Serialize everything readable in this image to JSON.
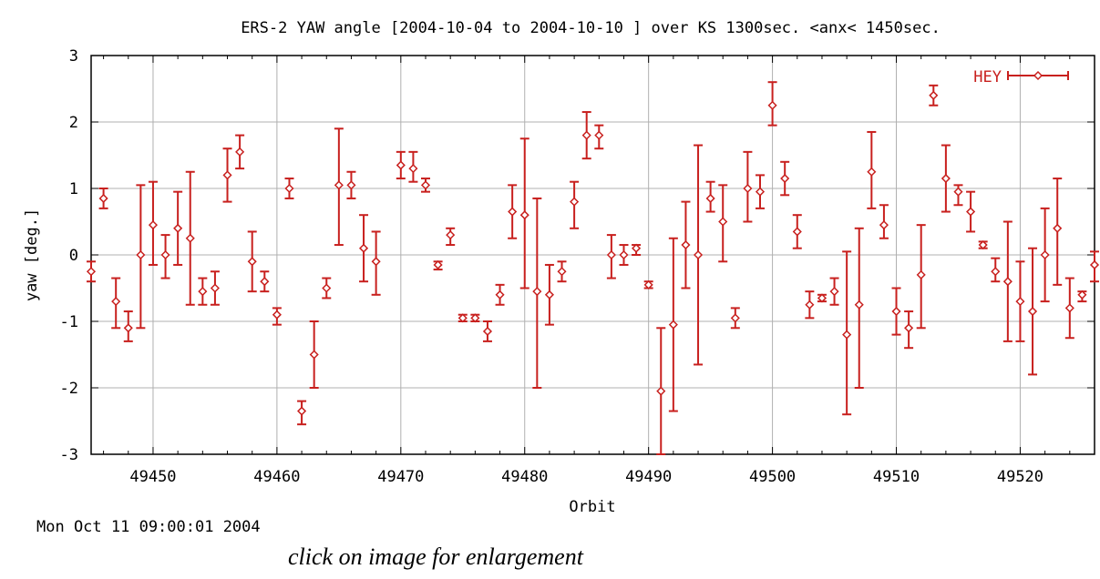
{
  "chart_data": {
    "type": "scatter",
    "title": "ERS-2 YAW angle [2004-10-04 to 2004-10-10 ] over KS 1300sec. <anx< 1450sec.",
    "xlabel": "Orbit",
    "ylabel": "yaw [deg.]",
    "xlim": [
      49445,
      49526
    ],
    "ylim": [
      -3,
      3
    ],
    "x_ticks": [
      49450,
      49460,
      49470,
      49480,
      49490,
      49500,
      49510,
      49520
    ],
    "y_ticks": [
      -3,
      -2,
      -1,
      0,
      1,
      2,
      3
    ],
    "grid": true,
    "legend_position": "top-right",
    "series": [
      {
        "name": "HEY",
        "color": "#c8201e",
        "points": [
          {
            "x": 49445,
            "y": -0.25,
            "lo": -0.4,
            "hi": -0.1
          },
          {
            "x": 49446,
            "y": 0.85,
            "lo": 0.7,
            "hi": 1.0
          },
          {
            "x": 49447,
            "y": -0.7,
            "lo": -1.1,
            "hi": -0.35
          },
          {
            "x": 49448,
            "y": -1.1,
            "lo": -1.3,
            "hi": -0.85
          },
          {
            "x": 49449,
            "y": 0.0,
            "lo": -1.1,
            "hi": 1.05
          },
          {
            "x": 49450,
            "y": 0.45,
            "lo": -0.15,
            "hi": 1.1
          },
          {
            "x": 49451,
            "y": 0.0,
            "lo": -0.35,
            "hi": 0.3
          },
          {
            "x": 49452,
            "y": 0.4,
            "lo": -0.15,
            "hi": 0.95
          },
          {
            "x": 49453,
            "y": 0.25,
            "lo": -0.75,
            "hi": 1.25
          },
          {
            "x": 49454,
            "y": -0.55,
            "lo": -0.75,
            "hi": -0.35
          },
          {
            "x": 49455,
            "y": -0.5,
            "lo": -0.75,
            "hi": -0.25
          },
          {
            "x": 49456,
            "y": 1.2,
            "lo": 0.8,
            "hi": 1.6
          },
          {
            "x": 49457,
            "y": 1.55,
            "lo": 1.3,
            "hi": 1.8
          },
          {
            "x": 49458,
            "y": -0.1,
            "lo": -0.55,
            "hi": 0.35
          },
          {
            "x": 49459,
            "y": -0.4,
            "lo": -0.55,
            "hi": -0.25
          },
          {
            "x": 49460,
            "y": -0.9,
            "lo": -1.05,
            "hi": -0.8
          },
          {
            "x": 49461,
            "y": 1.0,
            "lo": 0.85,
            "hi": 1.15
          },
          {
            "x": 49462,
            "y": -2.35,
            "lo": -2.55,
            "hi": -2.2
          },
          {
            "x": 49463,
            "y": -1.5,
            "lo": -2.0,
            "hi": -1.0
          },
          {
            "x": 49464,
            "y": -0.5,
            "lo": -0.65,
            "hi": -0.35
          },
          {
            "x": 49465,
            "y": 1.05,
            "lo": 0.15,
            "hi": 1.9
          },
          {
            "x": 49466,
            "y": 1.05,
            "lo": 0.85,
            "hi": 1.25
          },
          {
            "x": 49467,
            "y": 0.1,
            "lo": -0.4,
            "hi": 0.6
          },
          {
            "x": 49468,
            "y": -0.1,
            "lo": -0.6,
            "hi": 0.35
          },
          {
            "x": 49470,
            "y": 1.35,
            "lo": 1.15,
            "hi": 1.55
          },
          {
            "x": 49471,
            "y": 1.3,
            "lo": 1.1,
            "hi": 1.55
          },
          {
            "x": 49472,
            "y": 1.05,
            "lo": 0.95,
            "hi": 1.15
          },
          {
            "x": 49473,
            "y": -0.15,
            "lo": -0.22,
            "hi": -0.1
          },
          {
            "x": 49474,
            "y": 0.3,
            "lo": 0.15,
            "hi": 0.4
          },
          {
            "x": 49475,
            "y": -0.95,
            "lo": -1.0,
            "hi": -0.9
          },
          {
            "x": 49476,
            "y": -0.95,
            "lo": -1.0,
            "hi": -0.9
          },
          {
            "x": 49477,
            "y": -1.15,
            "lo": -1.3,
            "hi": -1.0
          },
          {
            "x": 49478,
            "y": -0.6,
            "lo": -0.75,
            "hi": -0.45
          },
          {
            "x": 49479,
            "y": 0.65,
            "lo": 0.25,
            "hi": 1.05
          },
          {
            "x": 49480,
            "y": 0.6,
            "lo": -0.5,
            "hi": 1.75
          },
          {
            "x": 49481,
            "y": -0.55,
            "lo": -2.0,
            "hi": 0.85
          },
          {
            "x": 49482,
            "y": -0.6,
            "lo": -1.05,
            "hi": -0.15
          },
          {
            "x": 49483,
            "y": -0.25,
            "lo": -0.4,
            "hi": -0.1
          },
          {
            "x": 49484,
            "y": 0.8,
            "lo": 0.4,
            "hi": 1.1
          },
          {
            "x": 49485,
            "y": 1.8,
            "lo": 1.45,
            "hi": 2.15
          },
          {
            "x": 49486,
            "y": 1.8,
            "lo": 1.6,
            "hi": 1.95
          },
          {
            "x": 49487,
            "y": 0.0,
            "lo": -0.35,
            "hi": 0.3
          },
          {
            "x": 49488,
            "y": 0.0,
            "lo": -0.15,
            "hi": 0.15
          },
          {
            "x": 49489,
            "y": 0.1,
            "lo": 0.0,
            "hi": 0.15
          },
          {
            "x": 49490,
            "y": -0.45,
            "lo": -0.5,
            "hi": -0.4
          },
          {
            "x": 49491,
            "y": -2.05,
            "lo": -3.0,
            "hi": -1.1
          },
          {
            "x": 49492,
            "y": -1.05,
            "lo": -2.35,
            "hi": 0.25
          },
          {
            "x": 49493,
            "y": 0.15,
            "lo": -0.5,
            "hi": 0.8
          },
          {
            "x": 49494,
            "y": 0.0,
            "lo": -1.65,
            "hi": 1.65
          },
          {
            "x": 49495,
            "y": 0.85,
            "lo": 0.65,
            "hi": 1.1
          },
          {
            "x": 49496,
            "y": 0.5,
            "lo": -0.1,
            "hi": 1.05
          },
          {
            "x": 49497,
            "y": -0.95,
            "lo": -1.1,
            "hi": -0.8
          },
          {
            "x": 49498,
            "y": 1.0,
            "lo": 0.5,
            "hi": 1.55
          },
          {
            "x": 49499,
            "y": 0.95,
            "lo": 0.7,
            "hi": 1.2
          },
          {
            "x": 49500,
            "y": 2.25,
            "lo": 1.95,
            "hi": 2.6
          },
          {
            "x": 49501,
            "y": 1.15,
            "lo": 0.9,
            "hi": 1.4
          },
          {
            "x": 49502,
            "y": 0.35,
            "lo": 0.1,
            "hi": 0.6
          },
          {
            "x": 49503,
            "y": -0.75,
            "lo": -0.95,
            "hi": -0.55
          },
          {
            "x": 49504,
            "y": -0.65,
            "lo": -0.7,
            "hi": -0.6
          },
          {
            "x": 49505,
            "y": -0.55,
            "lo": -0.75,
            "hi": -0.35
          },
          {
            "x": 49506,
            "y": -1.2,
            "lo": -2.4,
            "hi": 0.05
          },
          {
            "x": 49507,
            "y": -0.75,
            "lo": -2.0,
            "hi": 0.4
          },
          {
            "x": 49508,
            "y": 1.25,
            "lo": 0.7,
            "hi": 1.85
          },
          {
            "x": 49509,
            "y": 0.45,
            "lo": 0.25,
            "hi": 0.75
          },
          {
            "x": 49510,
            "y": -0.85,
            "lo": -1.2,
            "hi": -0.5
          },
          {
            "x": 49511,
            "y": -1.1,
            "lo": -1.4,
            "hi": -0.85
          },
          {
            "x": 49512,
            "y": -0.3,
            "lo": -1.1,
            "hi": 0.45
          },
          {
            "x": 49513,
            "y": 2.4,
            "lo": 2.25,
            "hi": 2.55
          },
          {
            "x": 49514,
            "y": 1.15,
            "lo": 0.65,
            "hi": 1.65
          },
          {
            "x": 49515,
            "y": 0.95,
            "lo": 0.75,
            "hi": 1.05
          },
          {
            "x": 49516,
            "y": 0.65,
            "lo": 0.35,
            "hi": 0.95
          },
          {
            "x": 49517,
            "y": 0.15,
            "lo": 0.1,
            "hi": 0.2
          },
          {
            "x": 49518,
            "y": -0.25,
            "lo": -0.4,
            "hi": -0.05
          },
          {
            "x": 49519,
            "y": -0.4,
            "lo": -1.3,
            "hi": 0.5
          },
          {
            "x": 49520,
            "y": -0.7,
            "lo": -1.3,
            "hi": -0.1
          },
          {
            "x": 49521,
            "y": -0.85,
            "lo": -1.8,
            "hi": 0.1
          },
          {
            "x": 49522,
            "y": 0.0,
            "lo": -0.7,
            "hi": 0.7
          },
          {
            "x": 49523,
            "y": 0.4,
            "lo": -0.45,
            "hi": 1.15
          },
          {
            "x": 49524,
            "y": -0.8,
            "lo": -1.25,
            "hi": -0.35
          },
          {
            "x": 49525,
            "y": -0.6,
            "lo": -0.7,
            "hi": -0.55
          },
          {
            "x": 49526,
            "y": -0.15,
            "lo": -0.4,
            "hi": 0.05
          }
        ]
      }
    ]
  },
  "timestamp": "Mon Oct 11 09:00:01 2004",
  "caption": "click on image for enlargement"
}
